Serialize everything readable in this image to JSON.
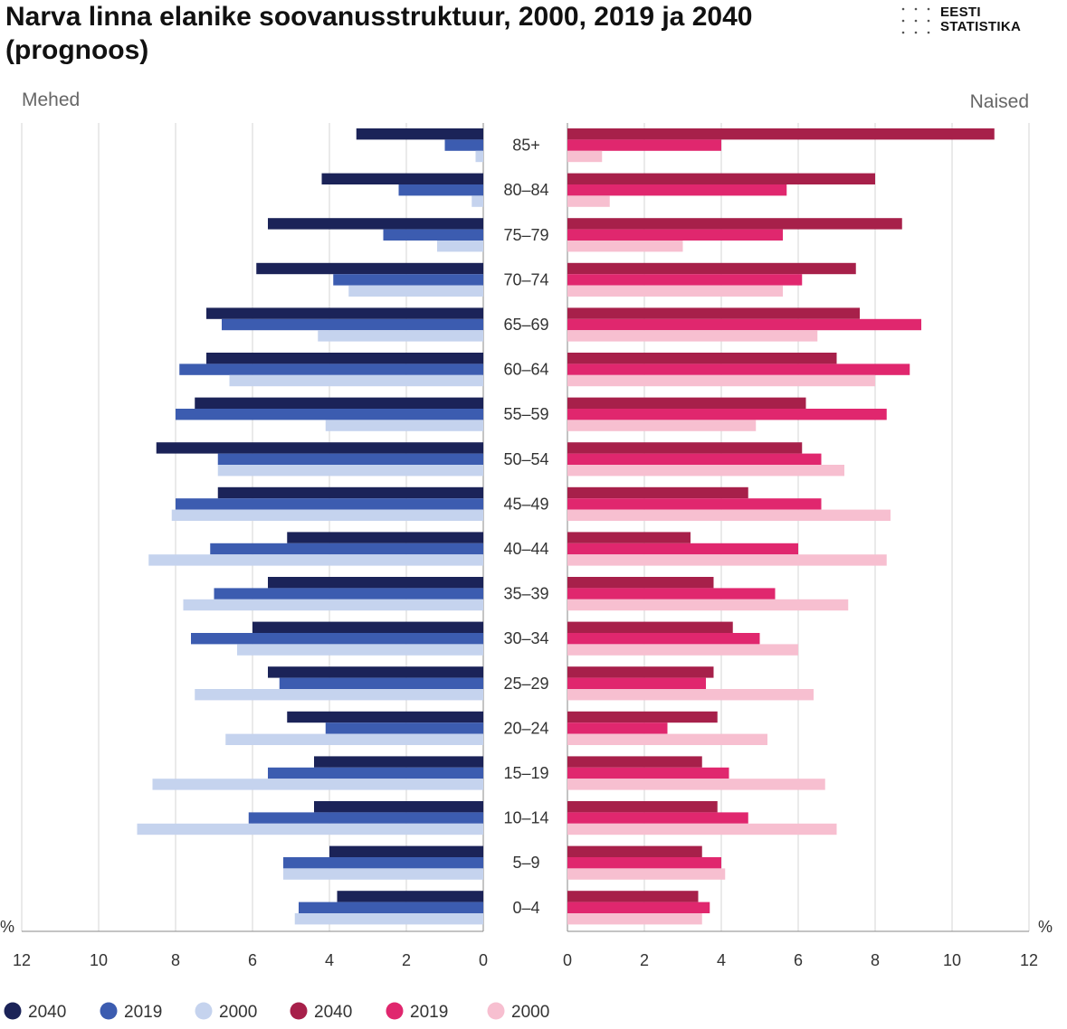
{
  "header": {
    "title": "Narva linna elanike soovanusstruktuur, 2000, 2019 ja 2040 (prognoos)",
    "logo_line1": "EESTI",
    "logo_line2": "STATISTIKA"
  },
  "chart_data": {
    "type": "bar",
    "orientation": "horizontal-population-pyramid",
    "categories": [
      "85+",
      "80–84",
      "75–79",
      "70–74",
      "65–69",
      "60–64",
      "55–59",
      "50–54",
      "45–49",
      "40–44",
      "35–39",
      "30–34",
      "25–29",
      "20–24",
      "15–19",
      "10–14",
      "5–9",
      "0–4"
    ],
    "left_label": "Mehed",
    "right_label": "Naised",
    "unit_label": "%",
    "xlim": [
      0,
      12
    ],
    "ticks": [
      0,
      2,
      4,
      6,
      8,
      10,
      12
    ],
    "grid": true,
    "legend_position": "bottom-left",
    "panels": [
      {
        "name": "Mehed",
        "side": "left",
        "series": [
          {
            "name": "2040",
            "color": "#1b2358",
            "values": [
              3.3,
              4.2,
              5.6,
              5.9,
              7.2,
              7.2,
              7.5,
              8.5,
              6.9,
              5.1,
              5.6,
              6.0,
              5.6,
              5.1,
              4.4,
              4.4,
              4.0,
              3.8
            ]
          },
          {
            "name": "2019",
            "color": "#3c5cb0",
            "values": [
              1.0,
              2.2,
              2.6,
              3.9,
              6.8,
              7.9,
              8.0,
              6.9,
              8.0,
              7.1,
              7.0,
              7.6,
              5.3,
              4.1,
              5.6,
              6.1,
              5.2,
              4.8
            ]
          },
          {
            "name": "2000",
            "color": "#c5d3ee",
            "values": [
              0.2,
              0.3,
              1.2,
              3.5,
              4.3,
              6.6,
              4.1,
              6.9,
              8.1,
              8.7,
              7.8,
              6.4,
              7.5,
              6.7,
              8.6,
              9.0,
              5.2,
              4.9
            ]
          }
        ]
      },
      {
        "name": "Naised",
        "side": "right",
        "series": [
          {
            "name": "2040",
            "color": "#a7204a",
            "values": [
              11.1,
              8.0,
              8.7,
              7.5,
              7.6,
              7.0,
              6.2,
              6.1,
              4.7,
              3.2,
              3.8,
              4.3,
              3.8,
              3.9,
              3.5,
              3.9,
              3.5,
              3.4
            ]
          },
          {
            "name": "2019",
            "color": "#e0276e",
            "values": [
              4.0,
              5.7,
              5.6,
              6.1,
              9.2,
              8.9,
              8.3,
              6.6,
              6.6,
              6.0,
              5.4,
              5.0,
              3.6,
              2.6,
              4.2,
              4.7,
              4.0,
              3.7
            ]
          },
          {
            "name": "2000",
            "color": "#f7bfd0",
            "values": [
              0.9,
              1.1,
              3.0,
              5.6,
              6.5,
              8.0,
              4.9,
              7.2,
              8.4,
              8.3,
              7.3,
              6.0,
              6.4,
              5.2,
              6.7,
              7.0,
              4.1,
              3.5
            ]
          }
        ]
      }
    ]
  }
}
